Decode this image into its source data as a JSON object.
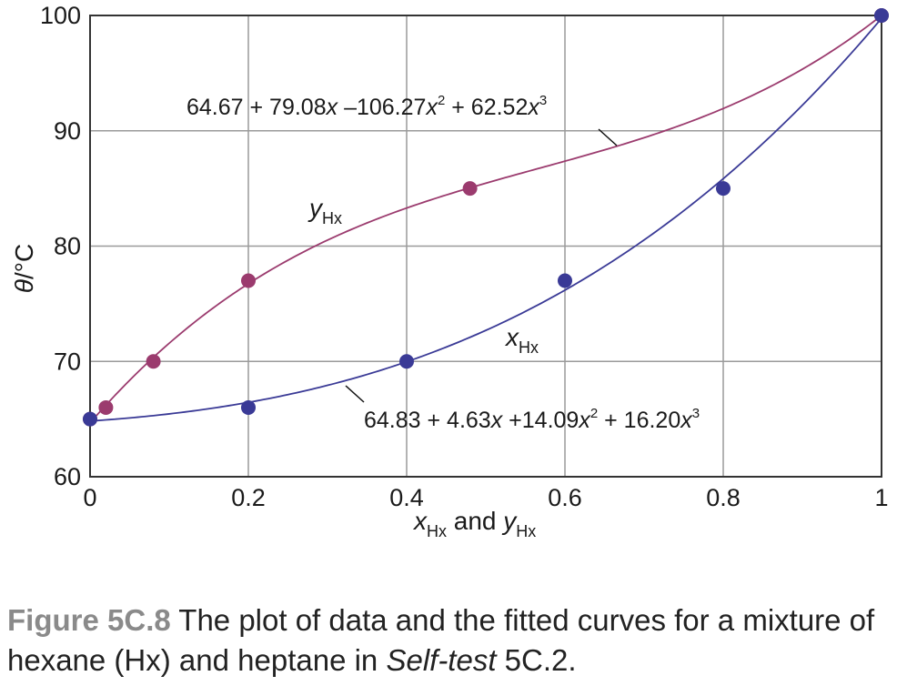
{
  "chart_data": {
    "type": "scatter",
    "xlabel": {
      "var1": "x",
      "sub1": "Hx",
      "and": " and ",
      "var2": "y",
      "sub2": "Hx"
    },
    "ylabel": {
      "theta": "θ",
      "unit": "/°C"
    },
    "xlim": [
      0,
      1
    ],
    "ylim": [
      60,
      100
    ],
    "xticks": [
      "0",
      "0.2",
      "0.4",
      "0.6",
      "0.8",
      "1"
    ],
    "yticks": [
      "60",
      "70",
      "80",
      "90",
      "100"
    ],
    "grid": true,
    "series": [
      {
        "label_var": "y",
        "label_sub": "Hx",
        "color": "#9b3b6e",
        "points": [
          [
            0,
            65
          ],
          [
            0.02,
            66
          ],
          [
            0.08,
            70
          ],
          [
            0.2,
            77
          ],
          [
            0.48,
            85
          ],
          [
            1.0,
            100
          ]
        ],
        "fit": [
          64.67,
          79.08,
          -106.27,
          62.52
        ],
        "equation": {
          "c0": "64.67 + 79.08",
          "v1": "x",
          "c1": " –106.27",
          "v2": "x",
          "e2": "2",
          "c2": " + 62.52",
          "v3": "x",
          "e3": "3"
        }
      },
      {
        "label_var": "x",
        "label_sub": "Hx",
        "color": "#3a3a96",
        "points": [
          [
            0,
            65
          ],
          [
            0.2,
            66
          ],
          [
            0.4,
            70
          ],
          [
            0.6,
            77
          ],
          [
            0.8,
            85
          ],
          [
            1.0,
            100
          ]
        ],
        "fit": [
          64.83,
          4.63,
          14.09,
          16.2
        ],
        "equation": {
          "c0": "64.83 + 4.63",
          "v1": "x",
          "c1": " +14.09",
          "v2": "x",
          "e2": "2",
          "c2": " + 16.20",
          "v3": "x",
          "e3": "3"
        }
      }
    ]
  },
  "caption": {
    "figure": "Figure 5C.8",
    "text1": "  The plot of data and the fitted curves for a mixture of hexane (Hx) and heptane in ",
    "italic": "Self-test",
    "text2": " 5C.2."
  }
}
